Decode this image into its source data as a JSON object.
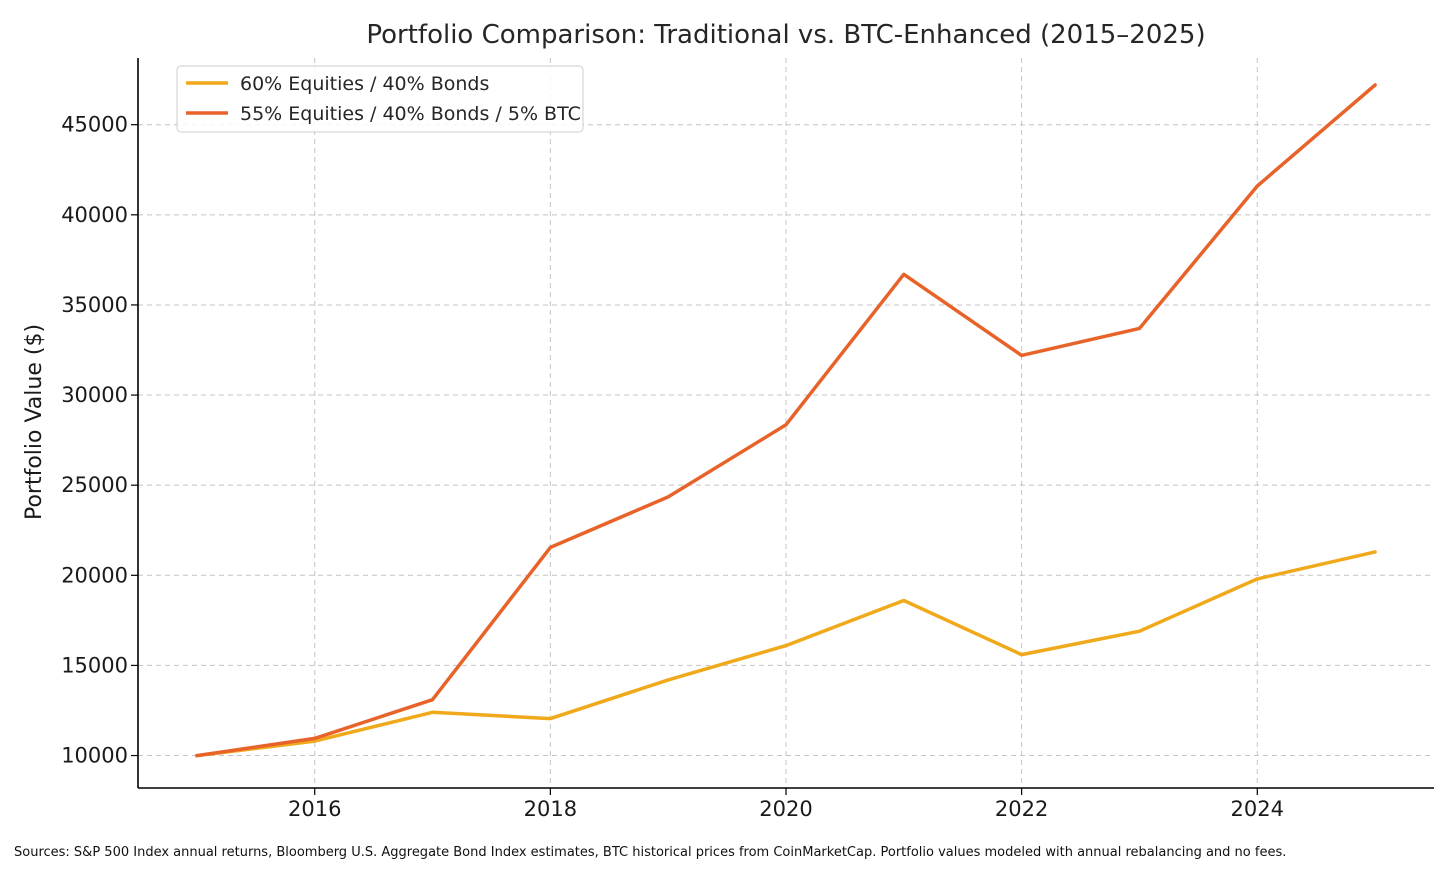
{
  "chart_data": {
    "type": "line",
    "title": "Portfolio Comparison: Traditional vs. BTC-Enhanced (2015–2025)",
    "xlabel": "",
    "ylabel": "Portfolio Value ($)",
    "x": [
      2015,
      2016,
      2017,
      2018,
      2019,
      2020,
      2021,
      2022,
      2023,
      2024,
      2025
    ],
    "xlim": [
      2014.5,
      2025.5
    ],
    "ylim": [
      8200,
      48700
    ],
    "xticks": [
      2016,
      2018,
      2020,
      2022,
      2024
    ],
    "yticks": [
      10000,
      15000,
      20000,
      25000,
      30000,
      35000,
      40000,
      45000
    ],
    "grid": true,
    "legend_position": "top-left",
    "series": [
      {
        "name": "60% Equities / 40% Bonds",
        "color": "#f0a91a",
        "values": [
          10000,
          10800,
          12400,
          12050,
          14200,
          16100,
          18600,
          15600,
          16900,
          19800,
          21300
        ]
      },
      {
        "name": "55% Equities / 40% Bonds / 5% BTC",
        "color": "#e8632a",
        "values": [
          10000,
          10950,
          13100,
          21550,
          24350,
          28350,
          36700,
          32200,
          33700,
          41600,
          47200
        ]
      }
    ]
  },
  "footer": {
    "sources": "Sources: S&P 500 Index annual returns, Bloomberg U.S. Aggregate Bond Index estimates, BTC historical prices from CoinMarketCap. Portfolio values modeled with annual rebalancing and no fees."
  }
}
